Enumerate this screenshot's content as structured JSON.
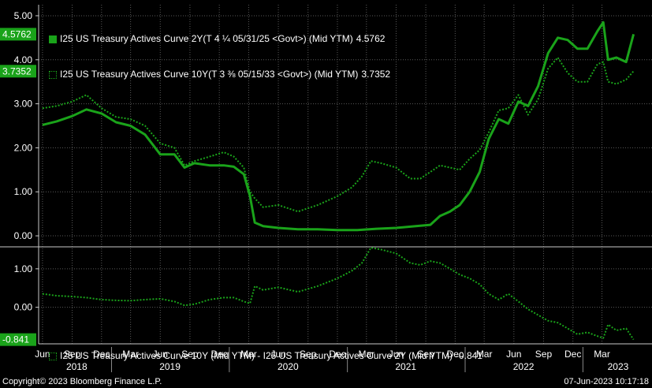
{
  "chart_data": [
    {
      "type": "line",
      "panel": "upper",
      "ylim": [
        -0.25,
        5.25
      ],
      "yticks": [
        "5.00",
        "4.00",
        "3.00",
        "2.00",
        "1.00",
        "0.00"
      ],
      "ytick_values": [
        5,
        4,
        3,
        2,
        1,
        0
      ],
      "grid": true,
      "legend_position": "top-left",
      "series": [
        {
          "name": "I25 US Treasury Actives Curve 2Y(T 4 ¼ 05/31/25 <Govt>) (Mid YTM)",
          "last_value": "4.5762",
          "style": "solid",
          "x": [
            "2018-06-01",
            "2018-07-15",
            "2018-09-01",
            "2018-10-15",
            "2018-12-01",
            "2019-01-15",
            "2019-03-01",
            "2019-04-15",
            "2019-06-01",
            "2019-07-15",
            "2019-08-15",
            "2019-09-15",
            "2019-11-01",
            "2019-12-15",
            "2020-01-15",
            "2020-02-15",
            "2020-03-05",
            "2020-03-20",
            "2020-04-15",
            "2020-06-01",
            "2020-08-01",
            "2020-10-01",
            "2020-12-01",
            "2021-02-01",
            "2021-04-01",
            "2021-06-01",
            "2021-08-01",
            "2021-09-15",
            "2021-10-15",
            "2021-11-15",
            "2021-12-15",
            "2022-01-15",
            "2022-02-15",
            "2022-03-15",
            "2022-04-15",
            "2022-05-15",
            "2022-06-15",
            "2022-07-15",
            "2022-08-15",
            "2022-09-15",
            "2022-10-15",
            "2022-11-15",
            "2022-12-15",
            "2023-01-15",
            "2023-02-15",
            "2023-03-05",
            "2023-03-20",
            "2023-04-15",
            "2023-05-15",
            "2023-06-07"
          ],
          "y": [
            2.52,
            2.6,
            2.72,
            2.87,
            2.78,
            2.58,
            2.5,
            2.3,
            1.85,
            1.85,
            1.55,
            1.65,
            1.6,
            1.6,
            1.57,
            1.4,
            0.9,
            0.3,
            0.22,
            0.18,
            0.15,
            0.15,
            0.13,
            0.13,
            0.16,
            0.18,
            0.22,
            0.25,
            0.45,
            0.55,
            0.7,
            1.0,
            1.45,
            2.2,
            2.65,
            2.55,
            3.05,
            2.95,
            3.4,
            4.15,
            4.5,
            4.45,
            4.25,
            4.25,
            4.65,
            4.85,
            4.0,
            4.05,
            3.95,
            4.58
          ]
        },
        {
          "name": "I25 US Treasury Actives Curve 10Y(T 3 ⅜ 05/15/33 <Govt>) (Mid YTM)",
          "last_value": "3.7352",
          "style": "dotted",
          "x": [
            "2018-06-01",
            "2018-07-15",
            "2018-09-01",
            "2018-10-15",
            "2018-12-01",
            "2019-01-15",
            "2019-03-01",
            "2019-04-15",
            "2019-06-01",
            "2019-07-15",
            "2019-08-15",
            "2019-09-15",
            "2019-11-01",
            "2019-12-15",
            "2020-01-15",
            "2020-02-15",
            "2020-03-05",
            "2020-03-20",
            "2020-04-15",
            "2020-06-01",
            "2020-08-01",
            "2020-10-01",
            "2020-12-01",
            "2021-01-15",
            "2021-02-15",
            "2021-03-15",
            "2021-04-15",
            "2021-06-01",
            "2021-07-15",
            "2021-08-15",
            "2021-09-15",
            "2021-10-15",
            "2021-11-15",
            "2021-12-15",
            "2022-01-15",
            "2022-02-15",
            "2022-03-15",
            "2022-04-15",
            "2022-05-15",
            "2022-06-15",
            "2022-07-15",
            "2022-08-15",
            "2022-09-15",
            "2022-10-15",
            "2022-11-15",
            "2022-12-15",
            "2023-01-15",
            "2023-02-15",
            "2023-03-05",
            "2023-03-20",
            "2023-04-15",
            "2023-05-15",
            "2023-06-07"
          ],
          "y": [
            2.9,
            2.95,
            3.05,
            3.2,
            2.9,
            2.7,
            2.65,
            2.5,
            2.1,
            2.0,
            1.6,
            1.7,
            1.8,
            1.9,
            1.8,
            1.55,
            1.0,
            0.85,
            0.65,
            0.7,
            0.55,
            0.7,
            0.9,
            1.1,
            1.35,
            1.7,
            1.65,
            1.55,
            1.3,
            1.3,
            1.45,
            1.6,
            1.55,
            1.5,
            1.75,
            1.95,
            2.35,
            2.85,
            2.9,
            3.2,
            2.75,
            3.1,
            3.8,
            4.05,
            3.7,
            3.5,
            3.5,
            3.9,
            3.95,
            3.5,
            3.45,
            3.55,
            3.74
          ]
        }
      ]
    },
    {
      "type": "line",
      "panel": "lower",
      "ylim": [
        -0.95,
        1.55
      ],
      "yticks": [
        "1.00",
        "0.00"
      ],
      "ytick_values": [
        1,
        0
      ],
      "grid": true,
      "legend_position": "bottom-left",
      "series": [
        {
          "name": "I25 US Treasury Actives Curve 10Y (Mid YTM) - I25 US Treasury Actives Curve 2Y (Mid YTM)",
          "last_value": "-0.841",
          "style": "dotted",
          "x": [
            "2018-06-01",
            "2018-07-15",
            "2018-09-01",
            "2018-10-15",
            "2018-12-01",
            "2019-01-15",
            "2019-03-01",
            "2019-04-15",
            "2019-06-01",
            "2019-07-15",
            "2019-08-15",
            "2019-09-15",
            "2019-11-01",
            "2019-12-15",
            "2020-01-15",
            "2020-02-15",
            "2020-03-05",
            "2020-03-20",
            "2020-04-15",
            "2020-06-01",
            "2020-08-01",
            "2020-10-01",
            "2020-12-01",
            "2021-01-15",
            "2021-02-15",
            "2021-03-15",
            "2021-04-15",
            "2021-06-01",
            "2021-07-15",
            "2021-08-15",
            "2021-09-15",
            "2021-10-15",
            "2021-11-15",
            "2021-12-15",
            "2022-01-15",
            "2022-02-15",
            "2022-03-15",
            "2022-04-15",
            "2022-05-15",
            "2022-06-15",
            "2022-07-15",
            "2022-08-15",
            "2022-09-15",
            "2022-10-15",
            "2022-11-15",
            "2022-12-15",
            "2023-01-15",
            "2023-02-15",
            "2023-03-05",
            "2023-03-20",
            "2023-04-15",
            "2023-05-15",
            "2023-06-07"
          ],
          "y": [
            0.35,
            0.3,
            0.28,
            0.25,
            0.2,
            0.18,
            0.17,
            0.2,
            0.22,
            0.15,
            0.05,
            0.08,
            0.2,
            0.25,
            0.25,
            0.15,
            0.1,
            0.55,
            0.45,
            0.52,
            0.4,
            0.55,
            0.75,
            0.95,
            1.15,
            1.55,
            1.5,
            1.4,
            1.15,
            1.1,
            1.2,
            1.15,
            1.0,
            0.85,
            0.75,
            0.6,
            0.35,
            0.2,
            0.35,
            0.15,
            -0.05,
            -0.2,
            -0.35,
            -0.4,
            -0.55,
            -0.7,
            -0.65,
            -0.75,
            -0.8,
            -0.45,
            -0.6,
            -0.55,
            -0.84
          ]
        }
      ]
    }
  ],
  "x_axis": {
    "months": [
      "Jun",
      "Sep",
      "Dec",
      "Mar",
      "Jun",
      "Sep",
      "Dec",
      "Mar",
      "Jun",
      "Sep",
      "Dec",
      "Mar",
      "Jun",
      "Sep",
      "Dec",
      "Mar",
      "Jun",
      "Sep",
      "Dec",
      "Mar"
    ],
    "month_dates": [
      "2018-06-01",
      "2018-09-01",
      "2018-12-01",
      "2019-03-01",
      "2019-06-01",
      "2019-09-01",
      "2019-12-01",
      "2020-03-01",
      "2020-06-01",
      "2020-09-01",
      "2020-12-01",
      "2021-03-01",
      "2021-06-01",
      "2021-09-01",
      "2021-12-01",
      "2022-03-01",
      "2022-06-01",
      "2022-09-01",
      "2022-12-01",
      "2023-03-01"
    ],
    "years": [
      "2018",
      "2019",
      "2020",
      "2021",
      "2022",
      "2023"
    ],
    "year_dates": [
      "2018-09-15",
      "2019-07-01",
      "2020-07-01",
      "2021-07-01",
      "2022-07-01",
      "2023-04-20"
    ],
    "start": "2018-05-20",
    "end": "2023-06-25"
  },
  "colors": {
    "line": "#1aa31a",
    "grid": "#5a5a5a",
    "background": "#000000",
    "text": "#ffffff"
  },
  "footer": {
    "copyright": "Copyright© 2023 Bloomberg Finance L.P.",
    "timestamp": "07-Jun-2023 10:17:18"
  }
}
